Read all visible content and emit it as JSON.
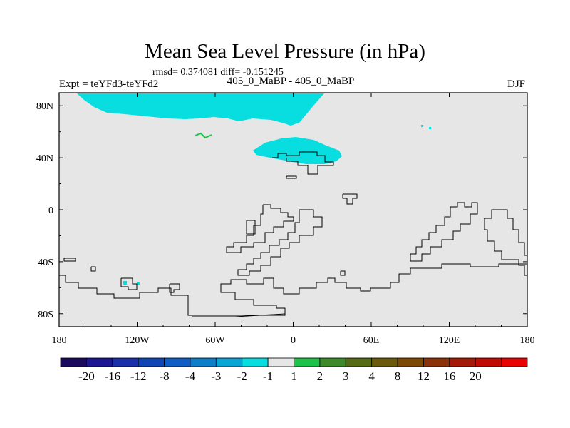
{
  "chart_data": {
    "type": "heatmap",
    "title": "Mean Sea Level Pressure (in hPa)",
    "stats_line": "rmsd= 0.374081 diff= -0.151245",
    "left_label": "Expt = teYFd3-teYFd2",
    "center_label": "405_0_MaBP - 405_0_MaBP",
    "right_label": "DJF",
    "x_ticks": [
      {
        "lon": -180,
        "label": "180"
      },
      {
        "lon": -120,
        "label": "120W"
      },
      {
        "lon": -60,
        "label": "60W"
      },
      {
        "lon": 0,
        "label": "0"
      },
      {
        "lon": 60,
        "label": "60E"
      },
      {
        "lon": 120,
        "label": "120E"
      },
      {
        "lon": 180,
        "label": "180"
      }
    ],
    "y_ticks": [
      {
        "lat": 80,
        "label": "80N"
      },
      {
        "lat": 40,
        "label": "40N"
      },
      {
        "lat": 0,
        "label": "0"
      },
      {
        "lat": -40,
        "label": "40S"
      },
      {
        "lat": -80,
        "label": "80S"
      }
    ],
    "xlim": [
      -180,
      180
    ],
    "ylim": [
      -90,
      90
    ],
    "colorbar": {
      "colors": [
        "#1a0a5e",
        "#1c1690",
        "#1a2fa8",
        "#0f46b4",
        "#0e5ec4",
        "#0e7ec8",
        "#0ba4d6",
        "#08dde0",
        "#e6e6e6",
        "#1ec24a",
        "#3e8a2a",
        "#556b16",
        "#6b5a0c",
        "#7d4a06",
        "#8c3208",
        "#a41a08",
        "#c00a04",
        "#e80404"
      ],
      "labels": [
        "-20",
        "-16",
        "-12",
        "-8",
        "-4",
        "-3",
        "-2",
        "-1",
        "1",
        "2",
        "3",
        "4",
        "8",
        "12",
        "16",
        "20"
      ]
    },
    "anomaly_regions": [
      {
        "name": "arctic-negative",
        "level": "-2 to -1",
        "color": "#08dde0",
        "lon_range": [
          -155,
          15
        ],
        "lat_range": [
          72,
          90
        ]
      },
      {
        "name": "asia-negative",
        "level": "-2 to -1",
        "color": "#08dde0",
        "lon_range": [
          -30,
          40
        ],
        "lat_range": [
          37,
          56
        ]
      },
      {
        "name": "north-pacific-positive",
        "level": "1 to 2",
        "color": "#1ec24a",
        "lon_range": [
          -75,
          -63
        ],
        "lat_range": [
          54,
          59
        ]
      },
      {
        "name": "south-pacific-negative",
        "level": "-2 to -1",
        "color": "#08dde0",
        "lon_range": [
          -135,
          -125
        ],
        "lat_range": [
          -56,
          -54
        ]
      }
    ]
  }
}
